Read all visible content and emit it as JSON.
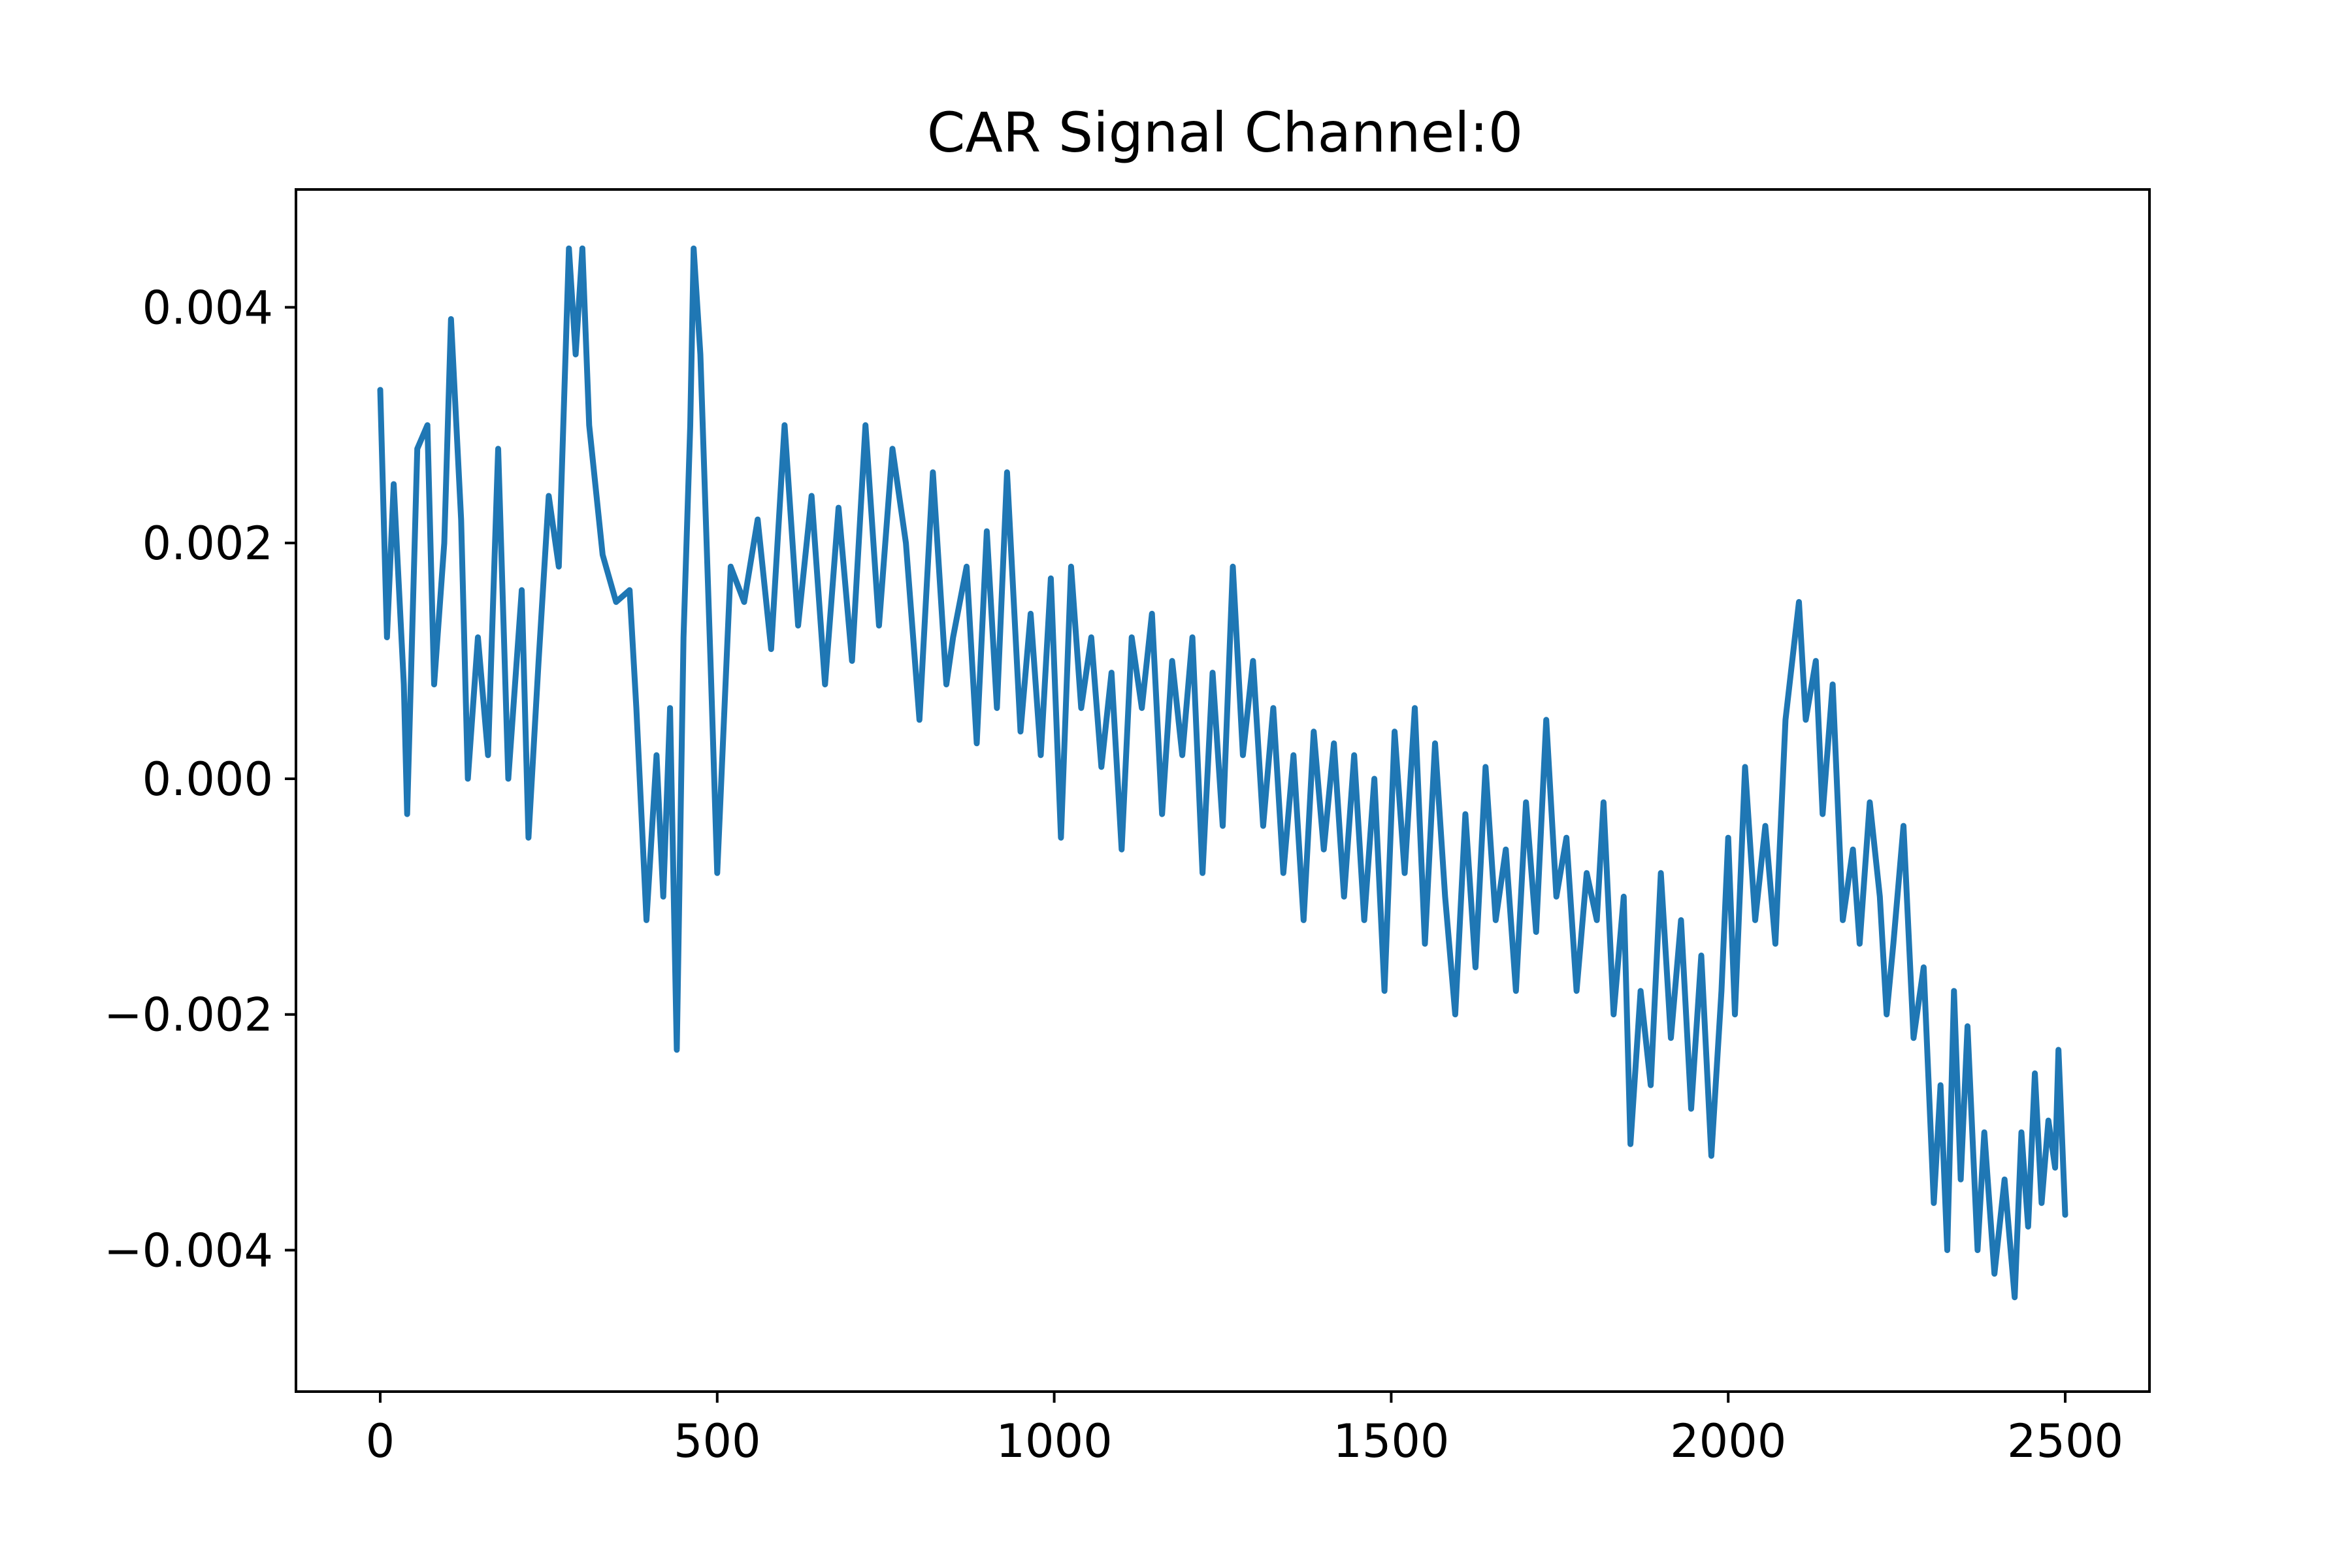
{
  "chart_data": {
    "type": "line",
    "title": "CAR Signal Channel:0",
    "xlabel": "",
    "ylabel": "",
    "xlim": [
      -125,
      2625
    ],
    "ylim": [
      -0.0052,
      0.005
    ],
    "xticks": [
      0,
      500,
      1000,
      1500,
      2000,
      2500
    ],
    "xtick_labels": [
      "0",
      "500",
      "1000",
      "1500",
      "2000",
      "2500"
    ],
    "yticks": [
      -0.004,
      -0.002,
      0.0,
      0.002,
      0.004
    ],
    "ytick_labels": [
      "−0.004",
      "−0.002",
      "0.000",
      "0.002",
      "0.004"
    ],
    "grid": false,
    "series": [
      {
        "color": "#1f77b4",
        "anchors": [
          [
            0,
            0.0033
          ],
          [
            10,
            0.0012
          ],
          [
            20,
            0.0025
          ],
          [
            35,
            0.0008
          ],
          [
            40,
            -0.0003
          ],
          [
            55,
            0.0028
          ],
          [
            70,
            0.003
          ],
          [
            80,
            0.0008
          ],
          [
            95,
            0.002
          ],
          [
            105,
            0.0039
          ],
          [
            120,
            0.0022
          ],
          [
            130,
            0.0
          ],
          [
            145,
            0.0012
          ],
          [
            160,
            0.0002
          ],
          [
            175,
            0.0028
          ],
          [
            190,
            0.0
          ],
          [
            210,
            0.0016
          ],
          [
            220,
            -0.0005
          ],
          [
            235,
            0.001
          ],
          [
            250,
            0.0024
          ],
          [
            265,
            0.0018
          ],
          [
            280,
            0.0045
          ],
          [
            290,
            0.0036
          ],
          [
            300,
            0.0045
          ],
          [
            310,
            0.003
          ],
          [
            330,
            0.0019
          ],
          [
            350,
            0.0015
          ],
          [
            370,
            0.0016
          ],
          [
            380,
            0.0006
          ],
          [
            395,
            -0.0012
          ],
          [
            410,
            0.0002
          ],
          [
            420,
            -0.001
          ],
          [
            430,
            0.0006
          ],
          [
            440,
            -0.0023
          ],
          [
            450,
            0.0012
          ],
          [
            460,
            0.003
          ],
          [
            465,
            0.0045
          ],
          [
            475,
            0.0036
          ],
          [
            490,
            0.001
          ],
          [
            500,
            -0.0008
          ],
          [
            520,
            0.0018
          ],
          [
            540,
            0.0015
          ],
          [
            560,
            0.0022
          ],
          [
            580,
            0.0011
          ],
          [
            600,
            0.003
          ],
          [
            620,
            0.0013
          ],
          [
            640,
            0.0024
          ],
          [
            660,
            0.0008
          ],
          [
            680,
            0.0023
          ],
          [
            700,
            0.001
          ],
          [
            720,
            0.003
          ],
          [
            740,
            0.0013
          ],
          [
            760,
            0.0028
          ],
          [
            780,
            0.002
          ],
          [
            800,
            0.0005
          ],
          [
            820,
            0.0026
          ],
          [
            840,
            0.0008
          ],
          [
            850,
            0.0012
          ],
          [
            870,
            0.0018
          ],
          [
            885,
            0.0003
          ],
          [
            900,
            0.0021
          ],
          [
            915,
            0.0006
          ],
          [
            930,
            0.0026
          ],
          [
            950,
            0.0004
          ],
          [
            965,
            0.0014
          ],
          [
            980,
            0.0002
          ],
          [
            995,
            0.0017
          ],
          [
            1010,
            -0.0005
          ],
          [
            1025,
            0.0018
          ],
          [
            1040,
            0.0006
          ],
          [
            1055,
            0.0012
          ],
          [
            1070,
            0.0001
          ],
          [
            1085,
            0.0009
          ],
          [
            1100,
            -0.0006
          ],
          [
            1115,
            0.0012
          ],
          [
            1130,
            0.0006
          ],
          [
            1145,
            0.0014
          ],
          [
            1160,
            -0.0003
          ],
          [
            1175,
            0.001
          ],
          [
            1190,
            0.0002
          ],
          [
            1205,
            0.0012
          ],
          [
            1220,
            -0.0008
          ],
          [
            1235,
            0.0009
          ],
          [
            1250,
            -0.0004
          ],
          [
            1265,
            0.0018
          ],
          [
            1280,
            0.0002
          ],
          [
            1295,
            0.001
          ],
          [
            1310,
            -0.0004
          ],
          [
            1325,
            0.0006
          ],
          [
            1340,
            -0.0008
          ],
          [
            1355,
            0.0002
          ],
          [
            1370,
            -0.0012
          ],
          [
            1385,
            0.0004
          ],
          [
            1400,
            -0.0006
          ],
          [
            1415,
            0.0003
          ],
          [
            1430,
            -0.001
          ],
          [
            1445,
            0.0002
          ],
          [
            1460,
            -0.0012
          ],
          [
            1475,
            0.0
          ],
          [
            1490,
            -0.0018
          ],
          [
            1505,
            0.0004
          ],
          [
            1520,
            -0.0008
          ],
          [
            1535,
            0.0006
          ],
          [
            1550,
            -0.0014
          ],
          [
            1565,
            0.0003
          ],
          [
            1580,
            -0.001
          ],
          [
            1595,
            -0.002
          ],
          [
            1610,
            -0.0003
          ],
          [
            1625,
            -0.0016
          ],
          [
            1640,
            0.0001
          ],
          [
            1655,
            -0.0012
          ],
          [
            1670,
            -0.0006
          ],
          [
            1685,
            -0.0018
          ],
          [
            1700,
            -0.0002
          ],
          [
            1715,
            -0.0013
          ],
          [
            1730,
            0.0005
          ],
          [
            1745,
            -0.001
          ],
          [
            1760,
            -0.0005
          ],
          [
            1775,
            -0.0018
          ],
          [
            1790,
            -0.0008
          ],
          [
            1805,
            -0.0012
          ],
          [
            1815,
            -0.0002
          ],
          [
            1830,
            -0.002
          ],
          [
            1845,
            -0.001
          ],
          [
            1855,
            -0.0031
          ],
          [
            1870,
            -0.0018
          ],
          [
            1885,
            -0.0026
          ],
          [
            1900,
            -0.0008
          ],
          [
            1915,
            -0.0022
          ],
          [
            1930,
            -0.0012
          ],
          [
            1945,
            -0.0028
          ],
          [
            1960,
            -0.0015
          ],
          [
            1975,
            -0.0032
          ],
          [
            1990,
            -0.0018
          ],
          [
            2000,
            -0.0005
          ],
          [
            2010,
            -0.002
          ],
          [
            2025,
            0.0001
          ],
          [
            2040,
            -0.0012
          ],
          [
            2055,
            -0.0004
          ],
          [
            2070,
            -0.0014
          ],
          [
            2085,
            0.0005
          ],
          [
            2095,
            0.001
          ],
          [
            2105,
            0.0015
          ],
          [
            2115,
            0.0005
          ],
          [
            2130,
            0.001
          ],
          [
            2140,
            -0.0003
          ],
          [
            2155,
            0.0008
          ],
          [
            2170,
            -0.0012
          ],
          [
            2185,
            -0.0006
          ],
          [
            2195,
            -0.0014
          ],
          [
            2210,
            -0.0002
          ],
          [
            2225,
            -0.001
          ],
          [
            2235,
            -0.002
          ],
          [
            2245,
            -0.0014
          ],
          [
            2260,
            -0.0004
          ],
          [
            2275,
            -0.0022
          ],
          [
            2290,
            -0.0016
          ],
          [
            2305,
            -0.0036
          ],
          [
            2315,
            -0.0026
          ],
          [
            2325,
            -0.004
          ],
          [
            2335,
            -0.0018
          ],
          [
            2345,
            -0.0034
          ],
          [
            2355,
            -0.0021
          ],
          [
            2370,
            -0.004
          ],
          [
            2380,
            -0.003
          ],
          [
            2395,
            -0.0042
          ],
          [
            2410,
            -0.0034
          ],
          [
            2425,
            -0.0044
          ],
          [
            2435,
            -0.003
          ],
          [
            2445,
            -0.0038
          ],
          [
            2455,
            -0.0025
          ],
          [
            2465,
            -0.0036
          ],
          [
            2475,
            -0.0029
          ],
          [
            2485,
            -0.0033
          ],
          [
            2490,
            -0.0023
          ],
          [
            2500,
            -0.0037
          ]
        ]
      }
    ]
  }
}
